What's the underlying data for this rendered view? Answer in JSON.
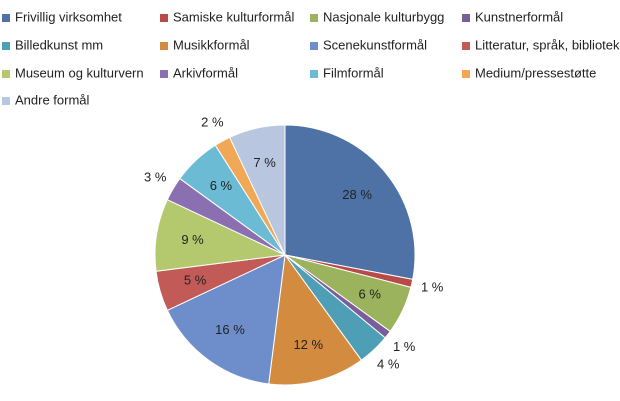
{
  "chart_data": {
    "type": "pie",
    "categories": [
      "Frivillig virksomhet",
      "Samiske kulturformål",
      "Nasjonale kulturbygg",
      "Kunstnerformål",
      "Billedkunst mm",
      "Musikkformål",
      "Scenekunstformål",
      "Litteratur, språk, bibliotek",
      "Museum og kulturvern",
      "Arkivformål",
      "Filmformål",
      "Medium/pressestøtte",
      "Andre formål"
    ],
    "values": [
      28,
      1,
      6,
      1,
      4,
      12,
      16,
      5,
      9,
      3,
      6,
      2,
      7
    ],
    "value_labels": [
      "28 %",
      "1 %",
      "6 %",
      "1 %",
      "4 %",
      "12 %",
      "16 %",
      "5 %",
      "9 %",
      "3 %",
      "6 %",
      "2 %",
      "7 %"
    ],
    "colors": [
      "#4f72a6",
      "#b84a47",
      "#9ab35c",
      "#7a5e9c",
      "#4e9fb6",
      "#d38b3f",
      "#6d8ecb",
      "#c25b57",
      "#b4c96d",
      "#8a70b0",
      "#6cbbd4",
      "#f1a856",
      "#b9c6df"
    ],
    "legend": "top"
  }
}
